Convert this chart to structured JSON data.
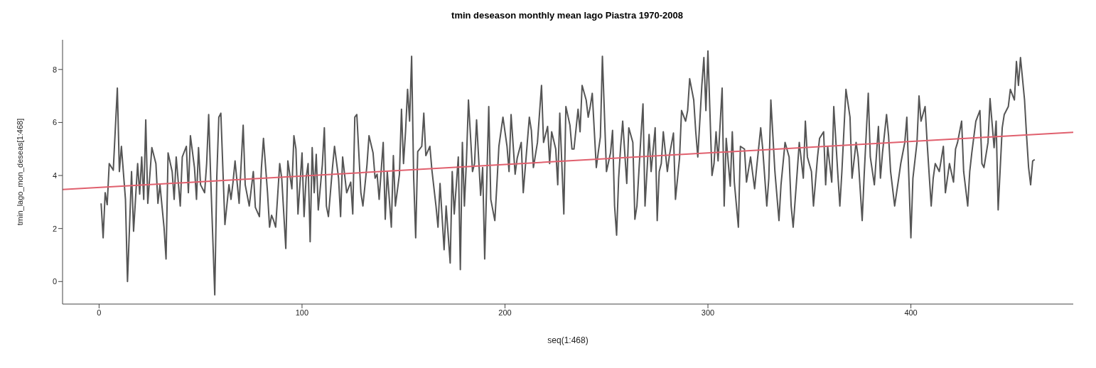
{
  "chart_data": {
    "type": "line",
    "title": "tmin deseason monthly mean lago Piastra 1970-2008",
    "xlabel": "seq(1:468)",
    "ylabel": "tmin_lago_mon_deseas[1:468]",
    "xlim": [
      -18,
      480
    ],
    "xticks": [
      0,
      100,
      200,
      300,
      400
    ],
    "ylim": [
      -0.85,
      9.12
    ],
    "yticks": [
      0,
      2,
      4,
      6,
      8
    ],
    "series": [
      {
        "color": "#555555",
        "x": [
          1,
          2,
          3,
          4,
          5,
          7,
          9,
          10,
          11,
          13,
          14,
          16,
          17,
          19,
          20,
          21,
          22,
          23,
          24,
          26,
          28,
          29,
          30,
          32,
          33,
          34,
          36,
          37,
          38,
          40,
          41,
          43,
          44,
          45,
          47,
          48,
          49,
          50,
          52,
          53,
          54,
          55,
          57,
          58,
          59,
          60,
          62,
          64,
          65,
          66,
          67,
          69,
          71,
          72,
          74,
          76,
          77,
          79,
          80,
          81,
          83,
          84,
          85,
          86,
          87,
          89,
          90,
          92,
          93,
          95,
          96,
          97,
          98,
          100,
          101,
          102,
          103,
          104,
          105,
          106,
          107,
          108,
          110,
          111,
          112,
          113,
          115,
          116,
          118,
          119,
          120,
          122,
          124,
          125,
          126,
          127,
          129,
          130,
          132,
          133,
          135,
          136,
          137,
          138,
          140,
          141,
          142,
          144,
          145,
          146,
          148,
          149,
          150,
          151,
          152,
          153,
          154,
          155,
          156,
          157,
          159,
          160,
          161,
          163,
          164,
          166,
          167,
          168,
          170,
          171,
          173,
          174,
          175,
          177,
          178,
          179,
          180,
          181,
          182,
          184,
          185,
          186,
          188,
          189,
          190,
          192,
          193,
          195,
          196,
          197,
          199,
          201,
          202,
          203,
          205,
          206,
          208,
          209,
          211,
          212,
          213,
          214,
          216,
          218,
          219,
          221,
          222,
          223,
          225,
          226,
          227,
          229,
          230,
          232,
          233,
          234,
          236,
          237,
          238,
          240,
          241,
          242,
          243,
          245,
          246,
          247,
          248,
          250,
          252,
          253,
          254,
          255,
          256,
          257,
          258,
          260,
          261,
          263,
          264,
          265,
          267,
          268,
          269,
          271,
          272,
          274,
          275,
          276,
          277,
          278,
          280,
          281,
          283,
          284,
          286,
          287,
          289,
          290,
          291,
          293,
          294,
          295,
          297,
          298,
          299,
          300,
          302,
          303,
          304,
          305,
          307,
          308,
          309,
          311,
          312,
          313,
          315,
          316,
          318,
          319,
          321,
          323,
          324,
          326,
          327,
          329,
          330,
          331,
          333,
          335,
          336,
          338,
          340,
          341,
          342,
          344,
          345,
          347,
          348,
          349,
          351,
          352,
          354,
          355,
          357,
          358,
          359,
          361,
          362,
          364,
          365,
          366,
          368,
          370,
          371,
          373,
          374,
          376,
          377,
          379,
          380,
          382,
          384,
          385,
          386,
          388,
          389,
          390,
          392,
          394,
          395,
          397,
          398,
          400,
          401,
          403,
          404,
          405,
          407,
          408,
          410,
          411,
          412,
          414,
          416,
          417,
          419,
          421,
          422,
          423,
          425,
          426,
          428,
          429,
          430,
          432,
          434,
          435,
          436,
          438,
          439,
          441,
          442,
          443,
          445,
          446,
          448,
          449,
          451,
          452,
          453,
          454,
          456,
          457,
          458,
          459,
          460,
          461
        ],
        "values": [
          2.95,
          1.65,
          3.35,
          2.9,
          4.45,
          4.2,
          7.3,
          4.15,
          5.1,
          3.1,
          0,
          4.15,
          1.9,
          4.45,
          3.3,
          4.7,
          3.1,
          6.1,
          2.95,
          5.05,
          4.45,
          2.95,
          3.65,
          2.05,
          0.85,
          4.85,
          4.15,
          3.1,
          4.7,
          2.85,
          4.7,
          5.1,
          3.35,
          5.5,
          4.3,
          3.1,
          5.05,
          3.65,
          3.35,
          4.45,
          6.3,
          3.9,
          -0.5,
          3.95,
          6.2,
          6.35,
          2.15,
          3.65,
          3.1,
          3.75,
          4.55,
          2.95,
          5.9,
          3.65,
          2.85,
          4.15,
          2.8,
          2.45,
          4.3,
          5.4,
          3.35,
          2.05,
          2.5,
          2.3,
          2.05,
          4.45,
          3.9,
          1.25,
          4.55,
          3.5,
          5.5,
          5.0,
          2.55,
          4.85,
          2.45,
          3.9,
          4.45,
          1.5,
          5.05,
          3.35,
          4.8,
          2.7,
          4.4,
          5.8,
          2.85,
          2.45,
          4.3,
          5.1,
          3.9,
          2.45,
          4.7,
          3.35,
          3.75,
          2.55,
          6.2,
          6.3,
          3.35,
          2.85,
          4.4,
          5.5,
          4.85,
          3.9,
          4.05,
          3.1,
          5.25,
          2.35,
          4.15,
          2.05,
          4.75,
          2.85,
          4.05,
          6.5,
          4.45,
          5.65,
          7.25,
          6.05,
          8.5,
          3.95,
          1.65,
          4.9,
          5.1,
          6.35,
          4.75,
          5.1,
          4.2,
          2.85,
          2.05,
          3.7,
          1.2,
          2.85,
          0.7,
          4.15,
          2.55,
          4.7,
          0.45,
          5.25,
          2.85,
          4.55,
          6.85,
          4.15,
          4.45,
          6.1,
          3.25,
          4.3,
          0.85,
          6.6,
          3.1,
          2.3,
          3.65,
          5.1,
          6.2,
          5.1,
          4.15,
          6.3,
          4.05,
          4.65,
          5.25,
          3.35,
          5.25,
          6.2,
          5.7,
          4.3,
          5.25,
          7.4,
          5.25,
          5.85,
          4.45,
          5.65,
          5.0,
          3.65,
          6.35,
          2.55,
          6.6,
          5.9,
          5.0,
          5.0,
          6.5,
          5.65,
          7.4,
          6.85,
          6.2,
          6.6,
          7.1,
          4.3,
          4.9,
          5.45,
          8.5,
          4.15,
          4.85,
          5.7,
          2.85,
          1.75,
          3.9,
          5.1,
          6.05,
          3.7,
          5.8,
          5.25,
          2.35,
          2.85,
          5.5,
          6.7,
          2.85,
          5.55,
          4.15,
          5.8,
          2.3,
          4.15,
          4.45,
          5.65,
          4.15,
          4.75,
          5.6,
          3.1,
          4.65,
          6.45,
          6.05,
          6.45,
          7.65,
          6.85,
          5.65,
          4.7,
          7.4,
          8.45,
          6.45,
          8.7,
          4.0,
          4.45,
          5.65,
          4.55,
          7.3,
          2.85,
          5.4,
          3.6,
          5.65,
          3.75,
          2.05,
          5.1,
          5.0,
          3.75,
          4.7,
          3.5,
          4.3,
          5.8,
          5.0,
          2.85,
          3.9,
          6.85,
          4.15,
          2.3,
          3.65,
          5.25,
          4.7,
          2.85,
          2.05,
          4.15,
          5.25,
          3.9,
          6.05,
          4.7,
          4.15,
          2.85,
          4.7,
          5.4,
          5.65,
          3.65,
          5.1,
          3.75,
          6.6,
          4.05,
          2.85,
          4.15,
          7.25,
          6.2,
          3.9,
          5.25,
          4.7,
          2.3,
          4.05,
          7.1,
          4.7,
          3.65,
          5.85,
          3.9,
          4.85,
          6.3,
          5.5,
          4.15,
          2.85,
          3.9,
          4.45,
          5.25,
          6.2,
          1.65,
          3.9,
          5.25,
          7.0,
          6.05,
          6.6,
          5.25,
          2.85,
          3.9,
          4.45,
          4.15,
          5.1,
          3.35,
          4.45,
          3.75,
          5.0,
          5.25,
          6.05,
          4.15,
          2.85,
          4.15,
          4.85,
          6.05,
          6.45,
          4.45,
          4.3,
          5.25,
          6.9,
          5.05,
          6.05,
          2.7,
          5.8,
          6.3,
          6.6,
          7.25,
          6.85,
          8.3,
          7.4,
          8.45,
          6.85,
          5.5,
          4.3,
          3.65,
          4.55,
          4.6
        ]
      },
      {
        "color": "#e0606e",
        "x": [
          -18,
          480
        ],
        "values": [
          3.47,
          5.63
        ]
      }
    ]
  }
}
